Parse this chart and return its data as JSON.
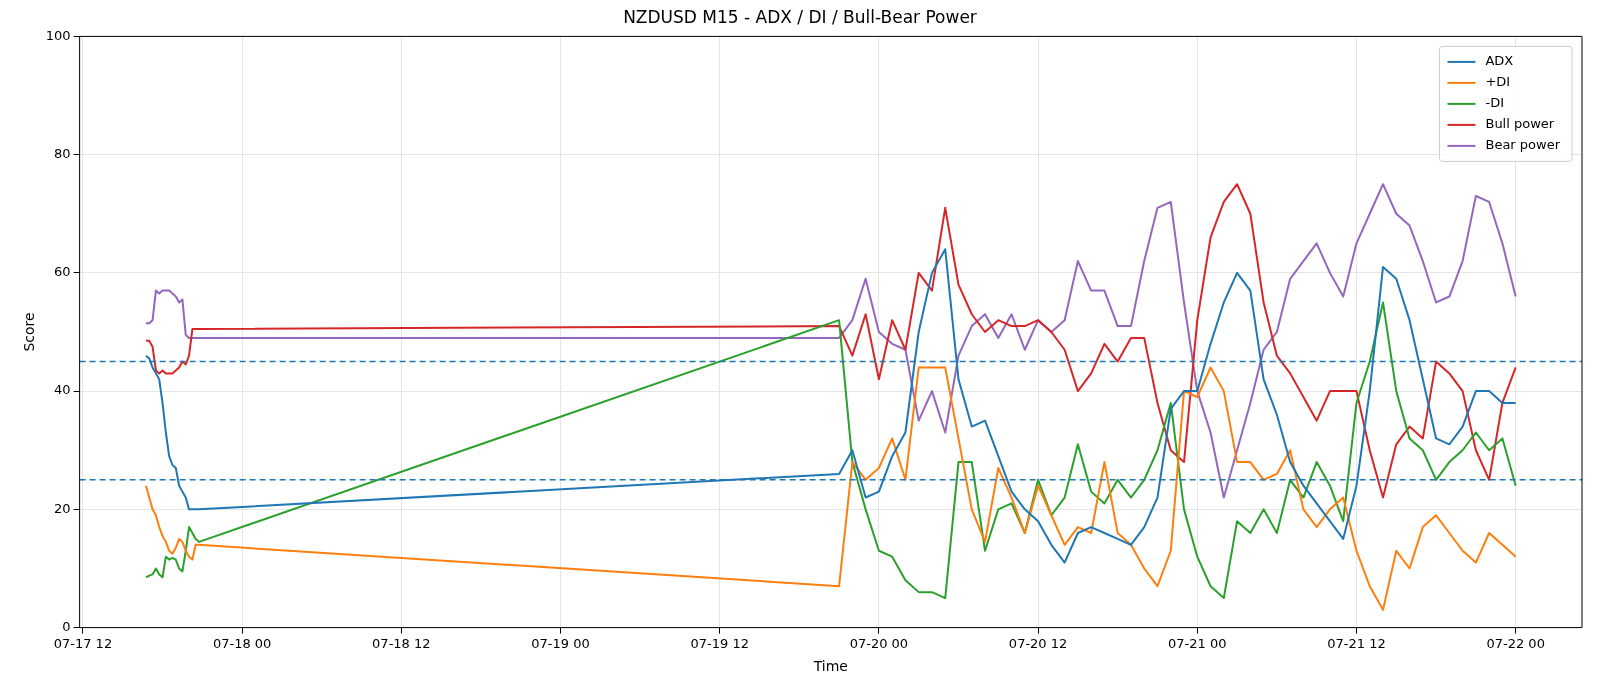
{
  "chart_data": {
    "type": "line",
    "title": "NZDUSD M15 - ADX / DI / Bull-Bear Power",
    "xlabel": "Time",
    "ylabel": "Score",
    "x": [
      "--07-17T16:45",
      "--07-17T17:00",
      "--07-17T17:15",
      "--07-17T17:30",
      "--07-17T17:45",
      "--07-17T18:00",
      "--07-17T18:15",
      "--07-17T18:30",
      "--07-17T18:45",
      "--07-17T19:00",
      "--07-17T19:15",
      "--07-17T19:30",
      "--07-17T19:45",
      "--07-17T20:00",
      "--07-17T20:15",
      "--07-17T20:30",
      "--07-17T20:45",
      "--07-19T21:00",
      "--07-19T22:00",
      "--07-19T23:00",
      "--07-20T00:00",
      "--07-20T01:00",
      "--07-20T02:00",
      "--07-20T03:00",
      "--07-20T04:00",
      "--07-20T05:00",
      "--07-20T06:00",
      "--07-20T07:00",
      "--07-20T08:00",
      "--07-20T09:00",
      "--07-20T10:00",
      "--07-20T11:00",
      "--07-20T12:00",
      "--07-20T13:00",
      "--07-20T14:00",
      "--07-20T15:00",
      "--07-20T16:00",
      "--07-20T17:00",
      "--07-20T18:00",
      "--07-20T19:00",
      "--07-20T20:00",
      "--07-20T21:00",
      "--07-20T22:00",
      "--07-20T23:00",
      "--07-21T00:00",
      "--07-21T01:00",
      "--07-21T02:00",
      "--07-21T03:00",
      "--07-21T04:00",
      "--07-21T05:00",
      "--07-21T06:00",
      "--07-21T07:00",
      "--07-21T08:00",
      "--07-21T09:00",
      "--07-21T10:00",
      "--07-21T11:00",
      "--07-21T12:00",
      "--07-21T13:00",
      "--07-21T14:00",
      "--07-21T15:00",
      "--07-21T16:00",
      "--07-21T17:00",
      "--07-21T18:00",
      "--07-21T19:00",
      "--07-21T20:00",
      "--07-21T21:00",
      "--07-21T22:00",
      "--07-21T23:00",
      "--07-22T00:00"
    ],
    "series": [
      {
        "name": "ADX",
        "color": "#1f77b4",
        "values": [
          46,
          45.5,
          44,
          43,
          42,
          38,
          33,
          29,
          27.5,
          27,
          24,
          23,
          22,
          20,
          20,
          20,
          20,
          26,
          30,
          22,
          23,
          29,
          33,
          50,
          60,
          64,
          42,
          34,
          35,
          29,
          23,
          20,
          18,
          14,
          11,
          16,
          17,
          16,
          15,
          14,
          17,
          22,
          37,
          40,
          40,
          48,
          55,
          60,
          57,
          42,
          36,
          28,
          24,
          21,
          18,
          15,
          24,
          40,
          61,
          59,
          52,
          42,
          32,
          31,
          34,
          40,
          40,
          38,
          38
        ]
      },
      {
        "name": "+DI",
        "color": "#ff7f0e",
        "values": [
          24,
          22,
          20,
          19,
          17,
          15.5,
          14.5,
          13,
          12.5,
          13.5,
          15,
          14.5,
          13,
          12,
          11.5,
          14,
          14,
          7,
          28,
          25,
          27,
          32,
          25,
          44,
          44,
          44,
          32,
          20,
          14.5,
          27,
          22,
          16,
          24,
          19,
          14,
          17,
          16,
          28,
          16,
          14,
          10,
          7,
          13,
          40,
          39,
          44,
          40,
          28,
          28,
          25,
          26,
          30,
          20,
          17,
          20,
          22,
          13,
          7,
          3,
          13,
          10,
          17,
          19,
          16,
          13,
          11,
          16,
          14,
          12
        ]
      },
      {
        "name": "-DI",
        "color": "#2ca02c",
        "values": [
          8.5,
          8.8,
          9,
          10,
          9,
          8.5,
          12,
          11.5,
          11.8,
          11.5,
          10,
          9.5,
          13,
          17,
          16,
          15,
          14.5,
          52,
          28,
          20,
          13,
          12,
          8,
          6,
          6,
          5,
          28,
          28,
          13,
          20,
          21,
          16,
          25,
          19,
          22,
          31,
          23,
          21,
          25,
          22,
          25,
          30,
          38,
          20,
          12,
          7,
          5,
          18,
          16,
          20,
          16,
          25,
          22,
          28,
          24,
          18,
          38,
          45,
          55,
          40,
          32,
          30,
          25,
          28,
          30,
          33,
          30,
          32,
          24
        ]
      },
      {
        "name": "Bull power",
        "color": "#d62728",
        "values": [
          48.5,
          48.5,
          47.5,
          43.5,
          43,
          43.5,
          43,
          43,
          43,
          43.5,
          44,
          45,
          44.5,
          46,
          50.5,
          50.5,
          50.5,
          51,
          46,
          53,
          42,
          52,
          47,
          60,
          57,
          71,
          58,
          53,
          50,
          52,
          51,
          51,
          52,
          50,
          47,
          40,
          43,
          48,
          45,
          49,
          49,
          38,
          30,
          28,
          52,
          66,
          72,
          75,
          70,
          55,
          46,
          43,
          39,
          35,
          40,
          40,
          40,
          30,
          22,
          31,
          34,
          32,
          45,
          43,
          40,
          30,
          25,
          38,
          44
        ]
      },
      {
        "name": "Bear power",
        "color": "#9467bd",
        "values": [
          51.5,
          51.5,
          52,
          57,
          56.5,
          57,
          57,
          57,
          56.5,
          56,
          55,
          55.5,
          49.5,
          49,
          49,
          49,
          49,
          49,
          52,
          59,
          50,
          48,
          47,
          35,
          40,
          33,
          46,
          51,
          53,
          49,
          53,
          47,
          52,
          50,
          52,
          62,
          57,
          57,
          51,
          51,
          62,
          71,
          72,
          55,
          40,
          33,
          22,
          30,
          38,
          47,
          50,
          59,
          62,
          65,
          60,
          56,
          65,
          70,
          75,
          70,
          68,
          62,
          55,
          56,
          62,
          73,
          72,
          65,
          56
        ]
      }
    ],
    "xlim": [
      "--07-17T11:45",
      "--07-22T05:00"
    ],
    "xticks": [
      {
        "value": "--07-17T12:00",
        "label": "07-17 12"
      },
      {
        "value": "--07-18T00:00",
        "label": "07-18 00"
      },
      {
        "value": "--07-18T12:00",
        "label": "07-18 12"
      },
      {
        "value": "--07-19T00:00",
        "label": "07-19 00"
      },
      {
        "value": "--07-19T12:00",
        "label": "07-19 12"
      },
      {
        "value": "--07-20T00:00",
        "label": "07-20 00"
      },
      {
        "value": "--07-20T12:00",
        "label": "07-20 12"
      },
      {
        "value": "--07-21T00:00",
        "label": "07-21 00"
      },
      {
        "value": "--07-21T12:00",
        "label": "07-21 12"
      },
      {
        "value": "--07-22T00:00",
        "label": "07-22 00"
      }
    ],
    "ylim": [
      0,
      100
    ],
    "yticks": [
      0,
      20,
      40,
      60,
      80,
      100
    ],
    "ref_lines": [
      {
        "axis": "y",
        "value": 45,
        "color": "#1f77b4",
        "line_style": "dashed"
      },
      {
        "axis": "y",
        "value": 25,
        "color": "#1f77b4",
        "line_style": "dashed"
      }
    ],
    "grid": true,
    "legend": "top right"
  }
}
